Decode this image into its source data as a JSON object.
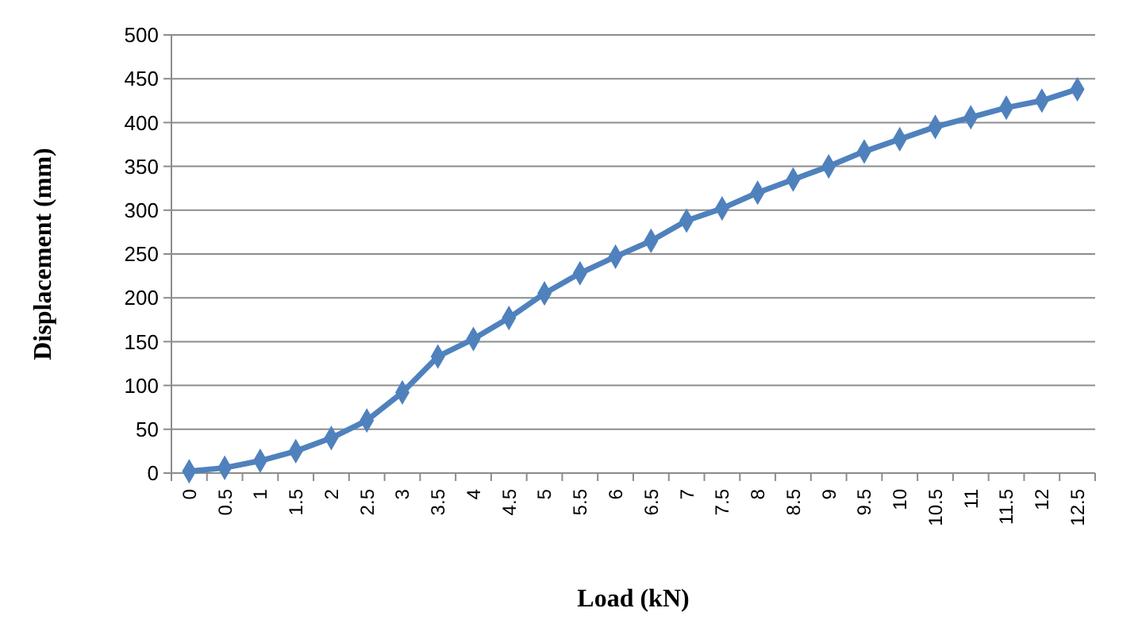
{
  "chart_data": {
    "type": "line",
    "xlabel": "Load (kN)",
    "ylabel": "Displacement (mm)",
    "categories": [
      "0",
      "0.5",
      "1",
      "1.5",
      "2",
      "2.5",
      "3",
      "3.5",
      "4",
      "4.5",
      "5",
      "5.5",
      "6",
      "6.5",
      "7",
      "7.5",
      "8",
      "8.5",
      "9",
      "9.5",
      "10",
      "10.5",
      "11",
      "11.5",
      "12",
      "12.5"
    ],
    "series": [
      {
        "color": "#4f81bd",
        "values": [
          2,
          6,
          14,
          25,
          40,
          60,
          92,
          133,
          153,
          177,
          205,
          228,
          247,
          265,
          288,
          302,
          320,
          335,
          350,
          367,
          381,
          395,
          406,
          417,
          425,
          438
        ]
      }
    ],
    "ylim": [
      0,
      500
    ],
    "yticks": [
      0,
      50,
      100,
      150,
      200,
      250,
      300,
      350,
      400,
      450,
      500
    ],
    "grid": "y",
    "marker": "diamond",
    "line_style": "solid"
  }
}
